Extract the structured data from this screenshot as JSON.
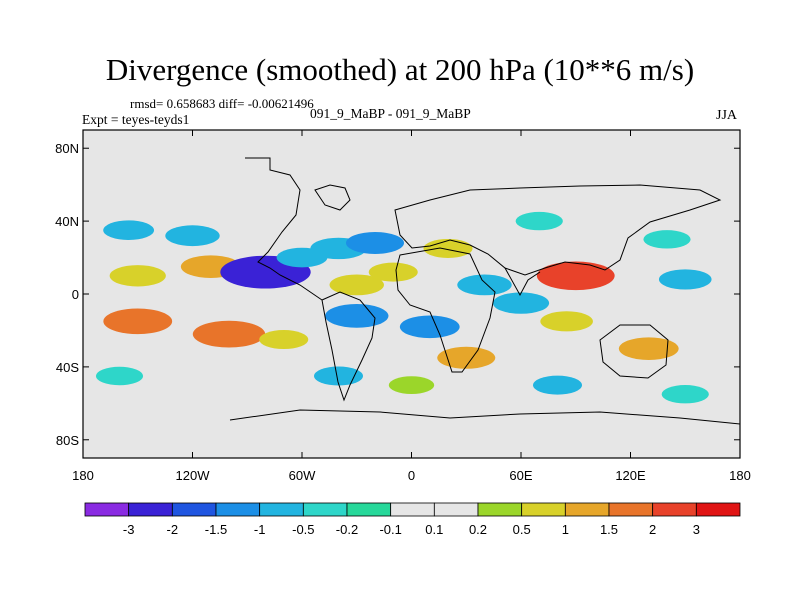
{
  "chart_data": {
    "type": "heatmap",
    "title": "Divergence (smoothed) at 200 hPa (10**6 m/s)",
    "stats": "rmsd= 0.658683 diff= -0.00621496",
    "experiment": "Expt = teyes-teyds1",
    "runs": "091_9_MaBP - 091_9_MaBP",
    "season": "JJA",
    "xlim": [
      -180,
      180
    ],
    "ylim": [
      -90,
      90
    ],
    "x_ticks": [
      {
        "value": -180,
        "label": "180"
      },
      {
        "value": -120,
        "label": "120W"
      },
      {
        "value": -60,
        "label": "60W"
      },
      {
        "value": 0,
        "label": "0"
      },
      {
        "value": 60,
        "label": "60E"
      },
      {
        "value": 120,
        "label": "120E"
      },
      {
        "value": 180,
        "label": "180"
      }
    ],
    "y_ticks": [
      {
        "value": 80,
        "label": "80N"
      },
      {
        "value": 40,
        "label": "40N"
      },
      {
        "value": 0,
        "label": "0"
      },
      {
        "value": -40,
        "label": "40S"
      },
      {
        "value": -80,
        "label": "80S"
      }
    ],
    "colorbar": {
      "labels": [
        "-3",
        "-2",
        "-1.5",
        "-1",
        "-0.5",
        "-0.2",
        "-0.1",
        "0.1",
        "0.2",
        "0.5",
        "1",
        "1.5",
        "2",
        "3"
      ],
      "colors": [
        "#8a2be2",
        "#3a22d6",
        "#1f55e0",
        "#1c8fe6",
        "#22b4e0",
        "#2ed6c9",
        "#27d89a",
        "#e6e6e6",
        "#9bd62a",
        "#d8d12a",
        "#e6a62a",
        "#e8742a",
        "#e8422a",
        "#e01414"
      ]
    },
    "regions": [
      {
        "lon": -150,
        "lat": 10,
        "value": 0.9
      },
      {
        "lon": -110,
        "lat": 15,
        "value": 1.1
      },
      {
        "lon": -120,
        "lat": 32,
        "value": -0.8
      },
      {
        "lon": -155,
        "lat": 35,
        "value": -0.6
      },
      {
        "lon": -80,
        "lat": 12,
        "value": -2.8
      },
      {
        "lon": -60,
        "lat": 20,
        "value": -0.6
      },
      {
        "lon": -40,
        "lat": 25,
        "value": -0.9
      },
      {
        "lon": -20,
        "lat": 28,
        "value": -1.0
      },
      {
        "lon": -30,
        "lat": 5,
        "value": 0.8
      },
      {
        "lon": -10,
        "lat": 12,
        "value": 0.5
      },
      {
        "lon": -150,
        "lat": -15,
        "value": 1.6
      },
      {
        "lon": -100,
        "lat": -22,
        "value": 1.8
      },
      {
        "lon": -70,
        "lat": -25,
        "value": 0.5
      },
      {
        "lon": -30,
        "lat": -12,
        "value": -1.3
      },
      {
        "lon": 10,
        "lat": -18,
        "value": -1.1
      },
      {
        "lon": 40,
        "lat": 5,
        "value": -0.8
      },
      {
        "lon": 20,
        "lat": 25,
        "value": 0.5
      },
      {
        "lon": 60,
        "lat": -5,
        "value": -0.9
      },
      {
        "lon": 90,
        "lat": 10,
        "value": 2.1
      },
      {
        "lon": 85,
        "lat": -15,
        "value": 0.7
      },
      {
        "lon": 130,
        "lat": -30,
        "value": 1.1
      },
      {
        "lon": 150,
        "lat": 8,
        "value": -0.7
      },
      {
        "lon": 140,
        "lat": 30,
        "value": -0.4
      },
      {
        "lon": 70,
        "lat": 40,
        "value": -0.4
      },
      {
        "lon": 30,
        "lat": -35,
        "value": 1.0
      },
      {
        "lon": 80,
        "lat": -50,
        "value": -0.5
      },
      {
        "lon": -160,
        "lat": -45,
        "value": -0.4
      },
      {
        "lon": 150,
        "lat": -55,
        "value": -0.4
      },
      {
        "lon": -40,
        "lat": -45,
        "value": -0.5
      },
      {
        "lon": 0,
        "lat": -50,
        "value": 0.3
      }
    ]
  }
}
